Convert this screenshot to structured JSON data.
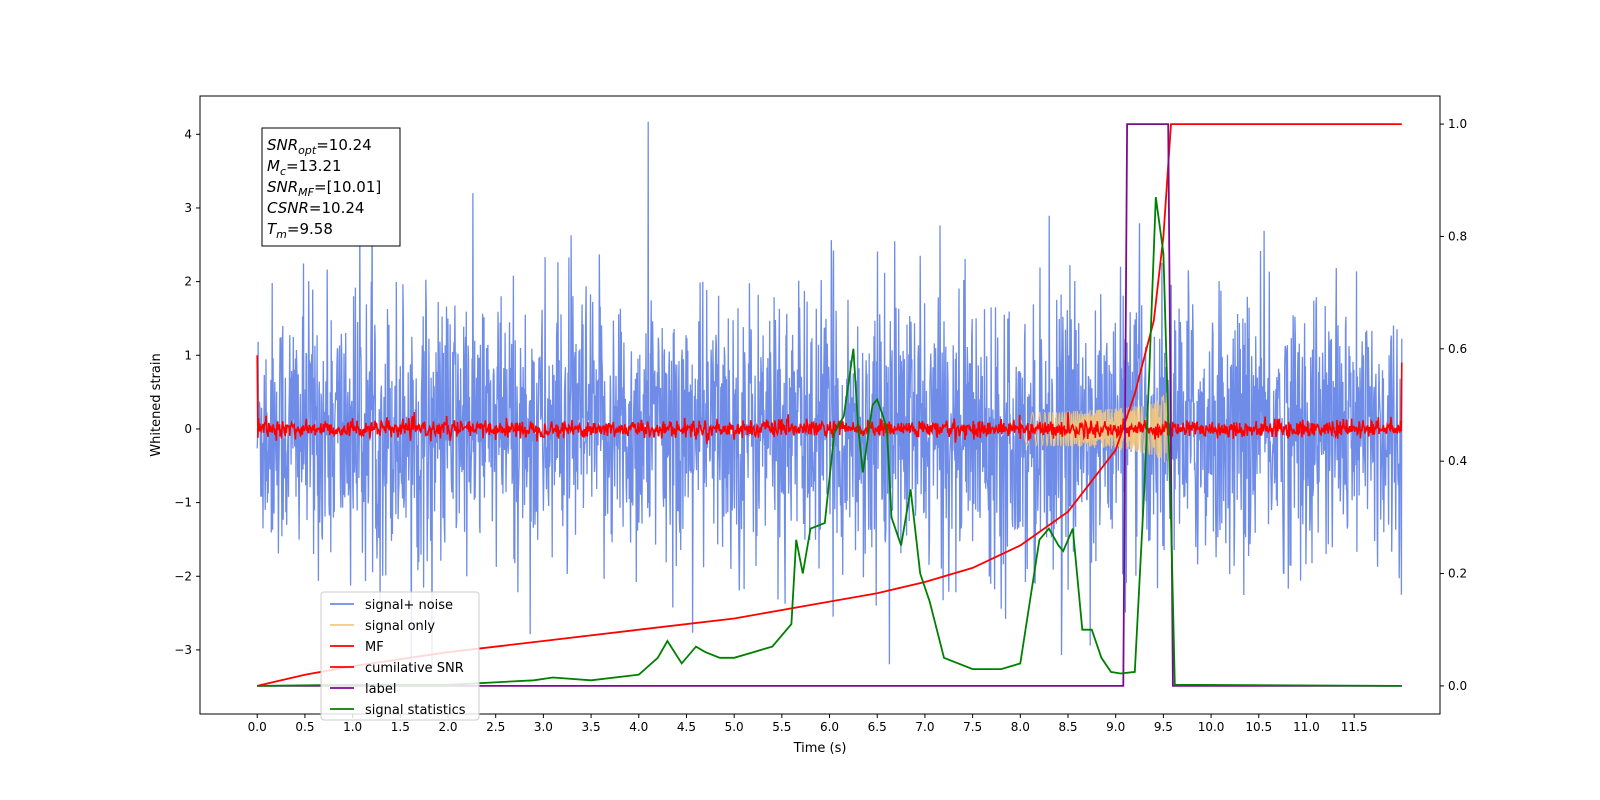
{
  "chart_data": {
    "type": "line",
    "xlabel": "Time (s)",
    "ylabel": "Whitened strain",
    "xlim": [
      -0.6,
      12.4
    ],
    "ylim": [
      -3.87,
      4.52
    ],
    "ylim_right": [
      -0.05,
      1.05
    ],
    "x_ticks": [
      "0.0",
      "0.5",
      "1.0",
      "1.5",
      "2.0",
      "2.5",
      "3.0",
      "3.5",
      "4.0",
      "4.5",
      "5.0",
      "5.5",
      "6.0",
      "6.5",
      "7.0",
      "7.5",
      "8.0",
      "8.5",
      "9.0",
      "9.5",
      "10.0",
      "10.5",
      "11.0",
      "11.5"
    ],
    "y_ticks": [
      "−3",
      "−2",
      "−1",
      "0",
      "1",
      "2",
      "3",
      "4"
    ],
    "y_ticks_right": [
      "0.0",
      "0.2",
      "0.4",
      "0.6",
      "0.8",
      "1.0"
    ],
    "grid": false,
    "legend_position": "lower-left",
    "annotation": {
      "lines": [
        {
          "sym": "SNR",
          "sub": "opt",
          "value": "=10.24"
        },
        {
          "sym": "M",
          "sub": "c",
          "value": "=13.21"
        },
        {
          "sym": "SNR",
          "sub": "MF",
          "value": "=[10.01]"
        },
        {
          "sym": "CSNR",
          "sub": "",
          "value": "=10.24"
        },
        {
          "sym": "T",
          "sub": "m",
          "value": "=9.58"
        }
      ]
    },
    "series": [
      {
        "name": "signal+ noise",
        "color": "#6f8de8",
        "axis": "left",
        "x_range": [
          0,
          12
        ],
        "amplitude_sd": 0.85,
        "max": 4.17,
        "min": -3.5
      },
      {
        "name": "signal only",
        "color": "#f5c97a",
        "axis": "left",
        "t_coalescence": 9.58,
        "peak_amplitude": 0.65
      },
      {
        "name": "MF",
        "color": "#ff0000",
        "axis": "left",
        "x_range": [
          0,
          12
        ],
        "amplitude_sd": 0.06
      },
      {
        "name": "cumilative SNR",
        "color": "#ff0000",
        "axis": "right",
        "x": [
          0,
          0.5,
          1,
          2,
          3,
          4,
          5,
          6,
          6.5,
          7,
          7.5,
          8,
          8.5,
          9,
          9.2,
          9.4,
          9.5,
          9.58,
          12
        ],
        "y": [
          0.0,
          0.02,
          0.035,
          0.06,
          0.08,
          0.1,
          0.12,
          0.15,
          0.165,
          0.185,
          0.21,
          0.25,
          0.31,
          0.42,
          0.52,
          0.65,
          0.8,
          1.0,
          1.0
        ]
      },
      {
        "name": "label",
        "color": "#7b0a8f",
        "axis": "right",
        "x": [
          0,
          9.08,
          9.12,
          9.55,
          9.6,
          12
        ],
        "y": [
          0,
          0,
          1,
          1,
          0,
          0
        ]
      },
      {
        "name": "signal statistics",
        "color": "#008000",
        "axis": "right",
        "x": [
          0,
          1,
          2,
          2.9,
          3.1,
          3.5,
          4,
          4.2,
          4.3,
          4.45,
          4.6,
          4.7,
          4.85,
          5,
          5.2,
          5.4,
          5.6,
          5.65,
          5.72,
          5.8,
          5.95,
          6.05,
          6.15,
          6.25,
          6.3,
          6.35,
          6.45,
          6.5,
          6.6,
          6.65,
          6.75,
          6.85,
          6.95,
          7.05,
          7.2,
          7.5,
          7.8,
          8,
          8.2,
          8.3,
          8.4,
          8.45,
          8.55,
          8.65,
          8.75,
          8.85,
          8.95,
          9.05,
          9.2,
          9.3,
          9.35,
          9.42,
          9.5,
          9.58,
          9.62,
          12
        ],
        "y": [
          0,
          0.002,
          0.002,
          0.01,
          0.015,
          0.01,
          0.02,
          0.05,
          0.08,
          0.04,
          0.07,
          0.06,
          0.05,
          0.05,
          0.06,
          0.07,
          0.11,
          0.26,
          0.2,
          0.28,
          0.29,
          0.45,
          0.48,
          0.6,
          0.46,
          0.38,
          0.5,
          0.51,
          0.46,
          0.3,
          0.25,
          0.35,
          0.2,
          0.15,
          0.05,
          0.03,
          0.03,
          0.04,
          0.26,
          0.28,
          0.25,
          0.24,
          0.28,
          0.1,
          0.1,
          0.05,
          0.025,
          0.022,
          0.025,
          0.35,
          0.55,
          0.87,
          0.77,
          0.3,
          0.002,
          0.0
        ]
      }
    ]
  }
}
